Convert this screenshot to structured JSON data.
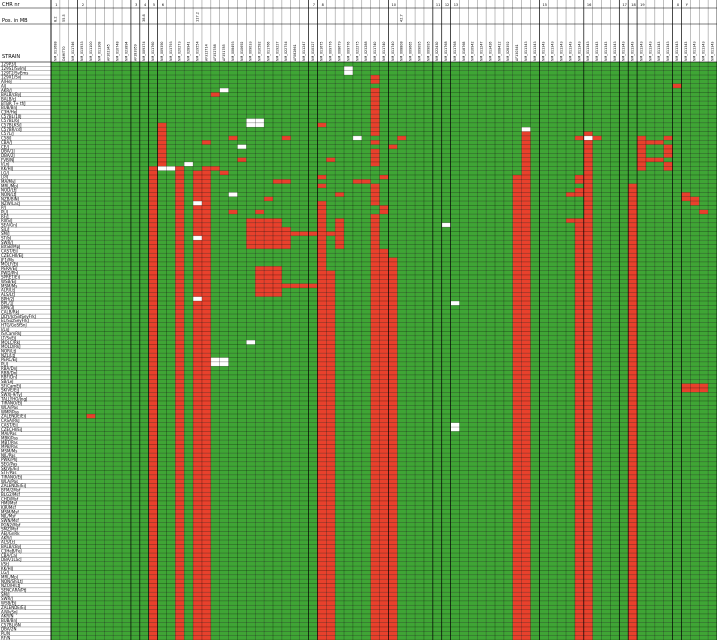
{
  "header": {
    "chr_label": "CHR nr",
    "pos_label": "Pos. in MB",
    "strain_label": "STRAIN"
  },
  "colors": {
    "match": "#3fa535",
    "mismatch": "#e8412c",
    "missing": "#ffffff",
    "gridline": "#000000"
  },
  "chart_data": {
    "type": "heatmap",
    "title": "",
    "legend": "none",
    "chromosomes": [
      "1",
      "",
      "",
      "2",
      "",
      "",
      "",
      "",
      "",
      "3",
      "4",
      "5",
      "6",
      "",
      "",
      "",
      "",
      "",
      "",
      "",
      "",
      "",
      "",
      "",
      "",
      "",
      "",
      "",
      "",
      "7",
      "8",
      "",
      "",
      "",
      "",
      "",
      "",
      "",
      "10",
      "",
      "",
      "",
      "",
      "11",
      "12",
      "13",
      "",
      "",
      "",
      "",
      "",
      "",
      "",
      "",
      "",
      "15",
      "",
      "",
      "",
      "",
      "16",
      "",
      "",
      "",
      "17",
      "18",
      "19",
      "",
      "",
      "",
      "X",
      "Y"
    ],
    "positions": [
      "8.2",
      "55.5",
      "",
      "",
      "",
      "",
      "",
      "",
      "",
      "",
      "38.8",
      "",
      "",
      "",
      "",
      "",
      "117.2",
      "",
      "",
      "",
      "",
      "",
      "",
      "",
      "",
      "",
      "",
      "",
      "",
      "",
      "",
      "",
      "",
      "",
      "",
      "",
      "",
      "",
      "",
      "42.7",
      "",
      "",
      "",
      "",
      "",
      "",
      "",
      "",
      "",
      "",
      "",
      "",
      "",
      "",
      "",
      "",
      "",
      "",
      "",
      "",
      "",
      "",
      "",
      "",
      "",
      "",
      "",
      "",
      "",
      "",
      "",
      "",
      "",
      "",
      "",
      "",
      "",
      ""
    ],
    "markers": [
      "NM_011688",
      "D4MIT70",
      "NM_011746",
      "NM_013933",
      "NM_011100",
      "NM_011308",
      "AF102345",
      "NM_010748",
      "NM_023894",
      "AF183959",
      "NM_009374",
      "NM_011760",
      "NM_009390",
      "NM_013793",
      "NM_020273",
      "NM_028941",
      "NM_019554",
      "AF312714",
      "AF352788",
      "AF351785",
      "NM_008493",
      "NM_010692",
      "NM_009033",
      "NM_010582",
      "NM_011766",
      "NM_019227",
      "NM_022754",
      "AF082861",
      "NM_011247",
      "NM_010327",
      "NM_011675",
      "NM_009776",
      "NM_008679",
      "NM_009776",
      "NM_022275",
      "NM_023288",
      "NM_011740",
      "NM_011740",
      "NM_011740",
      "NM_008808",
      "NM_009665",
      "NM_009095",
      "NM_009095",
      "NM_022430",
      "NM_011768",
      "NM_011768",
      "NM_018768",
      "NM_010942",
      "NM_011247",
      "NM_013426",
      "NM_008412",
      "NM_028392",
      "AF130341",
      "NM_011343",
      "NM_011343",
      "NM_011343",
      "NM_011343",
      "NM_011343",
      "NM_011343",
      "NM_011343",
      "NM_011343",
      "NM_011343",
      "NM_011343",
      "NM_011343",
      "NM_011343",
      "NM_011343",
      "NM_011343",
      "NM_011343",
      "NM_011343",
      "NM_011343",
      "NM_011343",
      "NM_011343",
      "NM_011343",
      "NM_011343",
      "NM_011343"
    ],
    "strains": [
      "129P3/J",
      "129S1/SvImJ",
      "129T2/SvEms",
      "129X1/SvJ",
      "A/HeJ",
      "A/J",
      "AKR/J",
      "BALB/cByJ",
      "BALB/cJ",
      "BTBR T+ tf/J",
      "BUB/BnJ",
      "C3H/HeJ",
      "C57BL/10J",
      "C57BL/6J",
      "C57BLKS/J",
      "C57BR/cdJ",
      "C57L/J",
      "C58/J",
      "CBA/J",
      "CE/J",
      "DBA/1J",
      "DBA/2J",
      "FVB/NJ",
      "I/LnJ",
      "KK/HlJ",
      "LG/J",
      "LP/J",
      "MA/MyJ",
      "MRL/MpJ",
      "NOD/LtJ",
      "NON/LtJ",
      "NZB/BlNJ",
      "NZW/LacJ",
      "P/J",
      "PL/J",
      "RF/J",
      "RIIIS/J",
      "SEA/GnJ",
      "SJL/J",
      "SM/J",
      "ST/bJ",
      "SWR/J",
      "BXSB/MpJ",
      "CAST/EiJ",
      "CZECHII/EiJ",
      "JF1/Ms",
      "MOLF/EiJ",
      "PERA/EiJ",
      "PWD/PhJ",
      "SPRET/EiJ",
      "WSB/EiJ",
      "MSM/Ms",
      "ALR/LtJ",
      "ALS/LtJ",
      "BPH/2J",
      "BPL/1J",
      "BPN/3J",
      "CALB/RkJ",
      "DDY/JclSidSeyFrkJ",
      "EL/SuzSeyFrkJ",
      "HTG/GoSfSnJ",
      "I/LnJ",
      "IS/CamRkJ",
      "LT/SvEiJ",
      "MOLC/RkJ",
      "MOLD/RkJ",
      "NOR/LtJ",
      "NZL/LtJ",
      "PERC/EiJ",
      "PL/J",
      "RBA/DnJ",
      "RBB/DnJ",
      "RBF/DnJ",
      "SB/LeJ",
      "SF/CamEiJ",
      "SKIVE/EiJ",
      "SWXJ-9/TyJ",
      "TALLYHO/JngJ",
      "TIRANO/EiJ",
      "WLA/Pas",
      "WMP/Pas",
      "ZALENDE/EiJ",
      "CASA/RkJ",
      "CAST/EiJ",
      "CZECHI/EiJ",
      "MAI/Pas",
      "MBK/Pas",
      "MBT/Pas",
      "MPB/Pas",
      "MSM/Ms",
      "NJL/Pas",
      "PWK/PhJ",
      "SEG/Pas",
      "SKIVE/EiJ",
      "STF/Pas",
      "TIRANO/EiJ",
      "WLA/Pas",
      "ZALENDE/EiJ",
      "BFM/2Msf",
      "BLG2/Msf",
      "CHD/Msf",
      "HMI/Msf",
      "KJR/Msf",
      "MSM/Msf",
      "NJL/Msf",
      "SWN/Msf",
      "PGN2/Msf",
      "SMZ/Msf",
      "AEJ/GnRk",
      "AKR/J",
      "ALS/LtJ",
      "BALB/cByJ",
      "C3HeB/FeJ",
      "CBA/CaJ",
      "DBA/1LacJ",
      "I/StJ",
      "KK/HlJ",
      "LG/J",
      "MRL/MpJ",
      "NON/ShiLtJ",
      "NZO/HlLtJ",
      "SENCARA/PtJ",
      "SM/J",
      "SWR/J",
      "WSB/EiJ",
      "ZALENDE/EiJ",
      "A/WySnJ",
      "AKR/N",
      "BUB/BnJ",
      "C57BL/6N",
      "DBA/2N",
      "PL/N",
      "RF/N"
    ],
    "cell_encoding": "G = matches reference (green), R = differs (red), W = missing (white)",
    "rows": [
      "GGGGGGGGGGGGGGGGGGGGGGGGGGGGGGGGGGGGGGGGGGGGGGGGGGGGGGGGGGGGGGGGGGGGGGGGGGG",
      "GGGGGGGGGGGGGGGGGGGGGGGGGGGGGGGGGWGGGGGGGGGGGGGGGGGGGGGGGGGGGGGGGGGGGGGGGGG",
      "GGGGGGGGGGGGGGGGGGGGGGGGGGGGGGGGGWGGGGGGGGGGGGGGGGGGGGGGGGGGGGGGGGGGGGGGGGG",
      "GGGGGGGGGGGGGGGGGGGGGGGGGGGGGGGGGGGGRGGGGGGGGGGGGGGGGGGGGGGGGGGGGGGGGGGGGGG",
      "GGGGGGGGGGGGGGGGGGGGGGGGGGGGGGGGGGGGRGGGGGGGGGGGGGGGGGGGGGGGGGGGGGGGGGGGGGG",
      "GGGGGGGGGGGGGGGGGGGGGGGGGGGGGGGGGGGGGGGGGGGGGGGGGGGGGGGGGGGGGGGGGGGGGGRGGGG",
      "GGGGGGGGGGGGGGGGGGGWGGGGGGGGGGGGGGGGRGGGGGGGGGGGGGGGGGGGGGGGGGGGGGGGGGGGGGG",
      "GGGGGGGGGGGGGGGGGGRGGGGGGGGGGGGGGGGGRGGGGGGGGGGGGGGGGGGGGGGGGGGGGGGGGGGGGGG",
      "GGGGGGGGGGGGGGGGGGGGGGGGGGGGGGGGGGGGRGGGGGGGGGGGGGGGGGGGGGGGGGGGGGGGGGGGGGG",
      "GGGGGGGGGGGGGGGGGGGGGGGGGGGGGGGGGGGGRGGGGGGGGGGGGGGGGGGGGGGGGGGGGGGGGGGGGGG",
      "GGGGGGGGGGGGGGGGGGGGGGGGGGGGGGGGGGGGRGGGGGGGGGGGGGGGGGGGGGGGGGGGGGGGGGGGGGG",
      "GGGGGGGGGGGGGGGGGGGGGGGGGGGGGGGGGGGGRGGGGGGGGGGGGGGGGGGGGGGGGGGGGGGGGGGGGGG",
      "GGGGGGGGGGGGGGGGGGGGGGGGGGGGGGGGGGGGRGGGGGGGGGGGGGGGGGGGGGGGGGGGGGGGGGGGGGG",
      "GGGGGGGGGGGGGGGGGGGGGGWWGGGGGGGGGGGGRGGGGGGGGGGGGGGGGGGGGGGGGGGGGGGGGGGGGGG",
      "GGGGGGGGGGGGRGGGGGGGGGWWGGGGGGRGGGGGRGGGGGGGGGGGGGGGGGGGGGGGGGGGGGGGGGGGGGG",
      "GGGGGGGGGGGGRGGGGGGGGGGGGGGGGGGGGGGGRGGGGGGGGGGGGGGGGWGGGGGGGGGGGGGGGGGGGGG",
      "GGGGGGGGGGGGRGGGGGGGGGGGGGGGGGGGGGGGRGGGGGGGGGGGGGGGGRGGGGGGRGGGGGGGGGGGGGG",
      "GGGGGGGGGGGGRGGGGGGGRGGGGGRGGGGGGGWGGGGRGGGGGGGGGGGGGRGGGGGRWRGGGGRGGRGGGGG",
      "GGGGGGGGGGGGRGGGGRGGGGGGGGGGGGGGGGGGRGGGGGGGGGGGGGGGGRGGGGGGRGGGGGRRRGGGGGG",
      "GGGGGGGGGGGGRGGGGGGGGWGGGGGGGGGGGGGGGGRGGGGGGGGGGGGGGRGGGGGGRGGGGGRGGRGGGGG",
      "GGGGGGGGGGGGRGGGGGGGGGGGGGGGGGGGGGGGRGGGGGGGGGGGGGGGGRGGGGGGRGGGGGRGGRGGGGG",
      "GGGGGGGGGGGGRGGGGGGGGGGGGGGGGGGGGGGGRGGGGGGGGGGGGGGGGRGGGGGGRGGGGGRGGRGGGGG",
      "GGGGGGGGGGGGRGGGGGGGGRGGGGGGGGGRGGGGRGGGGGGGGGGGGGGGGRGGGGGGRGGGGGRRRGGGGGG",
      "GGGGGGGGGGGGRGGWGGGGGGGGGGGGGGGGGGGGRGGGGGGGGGGGGGGGGRGGGGGGRGGGGGRGGRGGGGG",
      "GGGGGGGGGGGRWWRGGRRGGGGGGGGGGGGGGGGGGGGGGGGGGGGGGGGGGRGGGGGGRGGGGGRGGRGGGGG",
      "GGGGGGGGGGGRGGRGRRGRGGGGGGGGGGGGGGGGGGGGGGGGGGGGGGGGGRGGGGGGRGGGGGGGGGGGGGG",
      "GGGGGGGGGGGRGGRGRRGGGGGGGGGGGGRGGGGGGRGGGGGGGGGGGGGGRRGGGGGRRGGGGGGGGGGGGGG",
      "GGGGGGGGGGGRGGRGRRGGGGGGGRRGGGGGGGRRGGGGGGGGGGGGGGGGRRGGGGGRRGGGGGGGGGGGGGG",
      "GGGGGGGGGGGRGGRGRRGGGGGGGGGGGGRGGGGGRGGGGGGGGGGGGGGGRRGGGGGGRGGGGRGGGGGGGGG",
      "GGGGGGGGGGGRGGRGRRGGGGGGGGGGGGGGGGGGRGGGGGGGGGGGGGGGRRGGGGGRRGGGGRGGGGGGGGG",
      "GGGGGGGGGGGRGGRGRRGGWGGGGGGGGGGGRGGGRGGGGGGGGGGGGGGGRRGGGGRRRGGGGRGGGGGRGGG",
      "GGGGGGGGGGGRGGRGRRGGGGGGRGGGGGGGGGGGRGGGGGGGGGGGGGGGRRGGGGGGRGGGGRGGGGGRRGG",
      "GGGGGGGGGGGRGGRGWRGGGGGGGGGGGGRGGGGGRGGGGGGGGGGGGGGGRRGGGGGGRGGGGRGGGGGGRGG",
      "GGGGGGGGGGGRGGRGRRGGGGGGGGGGGGRGGGGGGRGGGGGGGGGGGGGGRRGGGGGGRGGGGRGGGGGGGGG",
      "GGGGGGGGGGGRGGRGRRGGRGGRGGGGGGRGGGGGGRGGGGGGGGGGGGGGRRGGGGGGRGGGGRGGGGGGGRG",
      "GGGGGGGGGGGRGGRGRRGGGGGGGGGGGGRGGGGGRGGGGGGGGGGGGGGGRRGGGGGGRGGGGRGGGGGGGGG",
      "GGGGGGGGGGGRGGRGRRGGGGRRRRGGGGRGRGGGRGGGGGGGGGGGGGGGRRGGGGRRRGGGGRGGGGGGGGG",
      "GGGGGGGGGGGRGGRGRRGGGGRRRRGGGGRGRGGGRGGGGGGGWGGGGGGGRRGGGGGRRGGGGRGGGGGGGGG",
      "GGGGGGGGGGGRGGRGRRGGGGRRRRRGGGRGRGGGRGGGGGGGGGGGGGGGRRGGGGGRRGGGGRGGGGGGGGG",
      "GGGGGGGGGGGRGGRGRRGGGGRRRRRRRRRRRGGGRGGGGGGGGGGGGGGGRRGGGGGRRGGGGRGGGGGGGGG",
      "GGGGGGGGGGGRGGRGWRGGGGRRRRRGGGRGRGGGRGGGGGGGGGGGGGGGRRGGGGGRRGGGGRGGGGGGGGG",
      "GGGGGGGGGGGRGGRGRRGGGGRRRRRGGGRGRGGGRGGGGGGGGGGGGGGGRRGGGGGRRGGGGRGGGGGGGGG",
      "GGGGGGGGGGGRGGRGRRGGGGRRRRRGGGRGRGGGRGGGGGGGGGGGGGGGRRGGGGGRRGGGGRGGGGGGGGG",
      "GGGGGGGGGGGRGGRGRRGGGGGGGGGGGGRGGGGGRRGGGGGGGGGGGGGGRRGGGGGRRGGGGRGGGGGGGGG",
      "GGGGGGGGGGGRGGRGRRGGGGGGGGGGGGRGGGGGRRGGGGGGGGGGGGGGRRGGGGGRRGGGGRGGGGGGGGG",
      "GGGGGGGGGGGRGGRGRRGGGGGGGGGGGGRGGGGGRRRGGGGGGGGGGGGGRRGGGGGRRGGGGRGGGGGGGGG",
      "GGGGGGGGGGGRGGRGRRGGGGGGGGGGGGRGGGGGRRRGGGGGGGGGGGGGRRGGGGGRRGGGGRGGGGGGGGG",
      "GGGGGGGGGGGRGGRGRRGGGGGRRRGGGGRGGGGGRRRGGGGGGGGGGGGGRRGGGGGRRGGGGRGGGGGGGGG",
      "GGGGGGGGGGGRGGRGRRGGGGGRRRGGGGRRGGGGRRRGGGGGGGGGGGGGRRGGGGGRRGGGGRGGGGGGGGG",
      "GGGGGGGGGGGRGGRGRRGGGGGRRRGGGGRRGGGGRRRGGGGGGGGGGGGGRRGGGGGRRGGGGRGGGGGGGGG",
      "GGGGGGGGGGGRGGRGRRGGGGGRRRGGGGRRGGGGRRRGGGGGGGGGGGGGRRGGGGGRRGGGGRGGGGGGGGG",
      "GGGGGGGGGGGRGGRGRRGGGGGRRRRRRRRRGGGGRRRGGGGGGGGGGGGGRRGGGGGRRGGGGRGGGGGGGGG",
      "GGGGGGGGGGGRGGRGRRGGGGGRRRGGGGRRGGGGRRRGGGGGGGGGGGGGRRGGGGGRRGGGGRGGGGGGGGG",
      "GGGGGGGGGGGRGGRGRRGGGGGRRRGGGGRRGGGGRRRGGGGGGGGGGGGGRRGGGGGRRGGGGRGGGGGGGGG",
      "GGGGGGGGGGGRGGRGWRGGGGGGGGGGGGRRGGGGRRRGGGGGGGGGGGGGRRGGGGGRRGGGGRGGGGGGGGG",
      "GGGGGGGGGGGRGGRGRRGGGGGGGGGGGGRRGGGGRRRGGGGGGWGGGGGGRRGGGGGRRGGGGRGGGGGGGGG",
      "GGGGGGGGGGGRGGRGRRGGGGGGGGGGGGRRGGGGRRRGGGGGGGGGGGGGRRGGGGGRRGGGGRGGGGGGGGG",
      "GGGGGGGGGGGRGGRGRRGGGGGGGGGGGGRRGGGGRRRGGGGGGGGGGGGGRRGGGGGRRGGGGRGGGGGGGGG",
      "GGGGGGGGGGGRGGRGRRGGGGGGGGGGGGRRGGGGRRRGGGGGGGGGGGGGRRGGGGGRRGGGGRGGGGGGGGG",
      "GGGGGGGGGGGRGGRGRRGGGGGGGGGGGGRRGGGGRRRGGGGGGGGGGGGGRRGGGGGRRGGGGRGGGGGGGGG",
      "GGGGGGGGGGGRGGRGRRGGGGGGGGGGGGRRGGGGRRRGGGGGGGGGGGGGRRGGGGGRRGGGGRGGGGGGGGG",
      "GGGGGGGGGGGRGGRGRRGGGGGGGGGGGGRRGGGGRRRGGGGGGGGGGGGGRRGGGGGRRGGGGRGGGGGGGGG",
      "GGGGGGGGGGGRGGRGRRGGGGGGGGGGGGRRGGGGRRRGGGGGGGGGGGGGRRGGGGGRRGGGGRGGGGGGGGG",
      "GGGGGGGGGGGRGGRGRRGGGGGGGGGGGGRRGGGGRRRGGGGGGGGGGGGGRRGGGGGRRGGGGRGGGGGGGGG",
      "GGGGGGGGGGGRGGRGRRGGGGWGGGGGGGRRGGGGRRRGGGGGGGGGGGGGRRGGGGGRRGGGGRGGGGGGGGG",
      "GGGGGGGGGGGRGGRGRRGGGGGGGGGGGGRRGGGGRRRGGGGGGGGGGGGGRRGGGGGRRGGGGRGGGGGGGGG",
      "GGGGGGGGGGGRGGRGRRGGGGGGGGGGGGRRGGGGRRRGGGGGGGGGGGGGRRGGGGGRRGGGGRGGGGGGGGG",
      "GGGGGGGGGGGRGGRGRRGGGGGGGGGGGGRRGGGGRRRGGGGGGGGGGGGGRRGGGGGRRGGGGRGGGGGGGGG",
      "GGGGGGGGGGGRGGRGRRWWGGGGGGGGGGRRGGGGRRRGGGGGGGGGGGGGRRGGGGGRRGGGGRGGGGGGGGG",
      "GGGGGGGGGGGRGGRGRRWWGGGGGGGGGGRRGGGGRRRGGGGGGGGGGGGGRRGGGGGRRGGGGRGGGGGGGGG",
      "GGGGGGGGGGGRGGRGRRGGGGGGGGGGGGRRGGGGRRRGGGGGGGGGGGGGRRGGGGGRRGGGGRGGGGGGGGG",
      "GGGGGGGGGGGRGGRGRRGGGGGGGGGGGGRRGGGGRRRGGGGGGGGGGGGGRRGGGGGRRGGGGRGGGGGGGGG",
      "GGGGGGGGGGGRGGRGRRGGGGGGGGGGGGRRGGGGRRRGGGGGGGGGGGGGRRGGGGGRRGGGGRGGGGGGGGG",
      "GGGGGGGGGGGRGGRGRRGGGGGGGGGGGGRRGGGGRRRGGGGGGGGGGGGGRRGGGGGRRGGGGRGGGGGGGGG",
      "GGGGGGGGGGGRGGRGRRGGGGGGGGGGGGRRGGGGRRRGGGGGGGGGGGGGRRGGGGGRRGGGGRGGGGGRRRG",
      "GGGGGGGGGGGRGGRGRRGGGGGGGGGGGGRRGGGGRRRGGGGGGGGGGGGGRRGGGGGRRGGGGRGGGGGRRRG",
      "GGGGGGGGGGGRGGRGRRGGGGGGGGGGGGRRGGGGRRRGGGGGGGGGGGGGRRGGGGGRRGGGGRGGGGGGGGG",
      "GGGGGGGGGGGRGGRGRRGGGGGGGGGGGGRRGGGGRRRGGGGGGGGGGGGGRRGGGGGRRGGGGRGGGGGGGGG",
      "GGGGGGGGGGGRGGRGRRGGGGGGGGGGGGRRGGGGRRRGGGGGGGGGGGGGRRGGGGGRRGGGGRGGGGGGGGG",
      "GGGGGGGGGGGRGGRGRRGGGGGGGGGGGGRRGGGGRRRGGGGGGGGGGGGGRRGGGGGRRGGGGRGGGGGGGGG",
      "GGGGGGGGGGGRGGRGRRGGGGGGGGGGGGRRGGGGRRRGGGGGGGGGGGGGRRGGGGGRRGGGGRGGGGGGGGG",
      "GGGGRGGGGGGRGGRGRRGGGGGGGGGGGGRRGGGGRRRGGGGGGGGGGGGGRRGGGGGRRGGGGRGGGGGGGGG",
      "GGGGGGGGGGGRGGRGRRGGGGGGGGGGGGRRGGGGRRRGGGGGGGGGGGGGRRGGGGGRRGGGGRGGGGGGGGG",
      "GGGGGGGGGGGRGGRGRRGGGGGGGGGGGGRRGGGGRRRGGGGGGWGGGGGGRRGGGGGRRGGGGRGGGGGGGGG",
      "GGGGGGGGGGGRGGRGRRGGGGGGGGGGGGRRGGGGRRRGGGGGGWGGGGGGRRGGGGGRRGGGGRGGGGGGGGG",
      "GGGGGGGGGGGRGGRGRRGGGGGGGGGGGGRRGGGGRRRGGGGGGGGGGGGGRRGGGGGRRGGGGRGGGGGGGGG",
      "GGGGGGGGGGGRGGRGRRGGGGGGGGGGGGRRGGGGRRRGGGGGGGGGGGGGRRGGGGGRRGGGGRGGGGGGGGG",
      "GGGGGGGGGGGRGGRGRRGGGGGGGGGGGGRRGGGGRRRGGGGGGGGGGGGGRRGGGGGRRGGGGRGGGGGGGGG",
      "GGGGGGGGGGGRGGRGRRGGGGGGGGGGGGRRGGGGRRRGGGGGGGGGGGGGRRGGGGGRRGGGGRGGGGGGGGG",
      "GGGGGGGGGGGRGGRGRRGGGGGGGGGGGGRRGGGGRRRGGGGGGGGGGGGGRRGGGGGRRGGGGRGGGGGGGGG",
      "GGGGGGGGGGGRGGRGRRGGGGGGGGGGGGRRGGGGRRRGGGGGGGGGGGGGRRGGGGGRRGGGGRGGGGGGGGG",
      "GGGGGGGGGGGRGGRGRRGGGGGGGGGGGGRRGGGGRRRGGGGGGGGGGGGGRRGGGGGRRGGGGRGGGGGGGGG",
      "GGGGGGGGGGGRGGRGRRGGGGGGGGGGGGRRGGGGRRRGGGGGGGGGGGGGRRGGGGGRRGGGGRGGGGGGGGG",
      "GGGGGGGGGGGRGGRGRRGGGGGGGGGGGGRRGGGGRRRGGGGGGGGGGGGGRRGGGGGRRGGGGRGGGGGGGGG",
      "GGGGGGGGGGGRGGRGRRGGGGGGGGGGGGRRGGGGRRRGGGGGGGGGGGGGRRGGGGGRRGGGGRGGGGGGGGG",
      "GGGGGGGGGGGRGGRGRRGGGGGGGGGGGGRRGGGGRRRGGGGGGGGGGGGGRRGGGGGRRGGGGRGGGGGGGGG",
      "GGGGGGGGGGGRGGRGRRGGGGGGGGGGGGRRGGGGRRRGGGGGGGGGGGGGRRGGGGGRRGGGGRGGGGGGGGG",
      "GGGGGGGGGGGRGGRGRRGGGGGGGGGGGGRRGGGGRRRGGGGGGGGGGGGGRRGGGGGRRGGGGRGGGGGGGGG",
      "GGGGGGGGGGGRGGRGRRGGGGGGGGGGGGRRGGGGRRRGGGGGGGGGGGGGRRGGGGGRRGGGGRGGGGGGGGG",
      "GGGGGGGGGGGRGGRGRRGGGGGGGGGGGGRRGGGGRRRGGGGGGGGGGGGGRRGGGGGRRGGGGRGGGGGGGGG",
      "GGGGGGGGGGGRGGRGRRGGGGGGGGGGGGRRGGGGRRRGGGGGGGGGGGGGRRGGGGGRRGGGGRGGGGGGGGG",
      "GGGGGGGGGGGRGGRGRRGGGGGGGGGGGGRRGGGGRRRGGGGGGGGGGGGGRRGGGGGRRGGGGRGGGGGGGGG",
      "GGGGGGGGGGGRGGRGRRGGGGGGGGGGGGRRGGGGRRRGGGGGGGGGGGGGRRGGGGGRRGGGGRGGGGGGGGG",
      "GGGGGGGGGGGRGGRGRRGGGGGGGGGGGGRRGGGGRRRGGGGGGGGGGGGGRRGGGGGRRGGGGRGGGGGGGGG",
      "GGGGGGGGGGGRGGRGRRGGGGGGGGGGGGRRGGGGRRRGGGGGGGGGGGGGRRGGGGGRRGGGGRGGGGGGGGG",
      "GGGGGGGGGGGRGGRGRRGGGGGGGGGGGGRRGGGGRRRGGGGGGGGGGGGGRRGGGGGRRGGGGRGGGGGGGGG",
      "GGGGGGGGGGGRGGRGRRGGGGGGGGGGGGRRGGGGRRRGGGGGGGGGGGGGRRGGGGGRRGGGGRGGGGGGGGG",
      "GGGGGGGGGGGRGGRGRRGGGGGGGGGGGGRRGGGGRRRGGGGGGGGGGGGGRRGGGGGRRGGGGRGGGGGGGGG",
      "GGGGGGGGGGGRGGRGRRGGGGGGGGGGGGRRGGGGRRRGGGGGGGGGGGGGRRGGGGGRRGGGGRGGGGGGGGG",
      "GGGGGGGGGGGRGGRGRRGGGGGGGGGGGGRRGGGGRRRGGGGGGGGGGGGGRRGGGGGRRGGGGRGGGGGGGGG",
      "GGGGGGGGGGGRGGRGRRGGGGGGGGGGGGRRGGGGRRRGGGGGGGGGGGGGRRGGGGGRRGGGGRGGGGGGGGG",
      "GGGGGGGGGGGRGGRGRRGGGGGGGGGGGGRRGGGGRRRGGGGGGGGGGGGGRRGGGGGRRGGGGRGGGGGGGGG",
      "GGGGGGGGGGGRGGRGRRGGGGGGGGGGGGRRGGGGRRRGGGGGGGGGGGGGRRGGGGGRRGGGGRGGGGGGGGG",
      "GGGGGGGGGGGRGGRGRRGGGGGGGGGGGGRRGGGGRRRGGGGGGGGGGGGGRRGGGGGRRGGGGRGGGGGGGGG",
      "GGGGGGGGGGGRGGRGRRGGGGGGGGGGGGRRGGGGRRRGGGGGGGGGGGGGRRGGGGGRRGGGGRGGGGGGGGG",
      "GGGGGGGGGGGRGGRGRRGGGGGGGGGGGGRRGGGGRRRGGGGGGGGGGGGGRRGGGGGRRGGGGRGGGGGGGGG",
      "GGGGGGGGGGGRGGRGRRGGGGGGGGGGGGRRGGGGRRRGGGGGGGGGGGGGRRGGGGGRRGGGGRGGGGGGGGG",
      "GGGGGGGGGGGRGGRGRRGGGGGGGGGGGGRRGGGGRRRGGGGGGGGGGGGGRRGGGGGRRGGGGRGGGGGGGGG",
      "GGGGGGGGGGGRGGRGRRGGGGGGGGGGGGRRGGGGRRRGGGGGGGGGGGGGRRGGGGGRRGGGGRGGGGGGGGG",
      "GGGGGGGGGGGRGGRGRRGGGGGGGGGGGGRRGGGGRRRGGGGGGGGGGGGGRRGGGGGRRGGGGRGGGGGGGGG",
      "GGGGGGGGGGGRGGRGRRGGGGGGGGGGGGRRGGGGRRRGGGGGGGGGGGGGRRGGGGGRRGGGGRGGGGGGGGG",
      "GGGGGGGGGGGRGGRGRRGGGGGGGGGGGGRRGGGGRRRGGGGGGGGGGGGGRRGGGGGRRGGGGRGGGGGGGGG",
      "GGGGGGGGGGGRGGRGRRGGGGGGGGGGGGRRGGGGRRRGGGGGGGGGGGGGRRGGGGGRRGGGGRGGGGGGGGG",
      "GGGGGGGGGGGRGGRGRRGGGGGGGGGGGGRRGGGGRRRGGGGGGGGGGGGGRRGGGGGRRGGGGRGGGGGGGGG",
      "GGGGGGGGGGGRGGRGRRGGGGGGGGGGGGRRGGGGRRRGGGGGGGGGGGGGRRGGGGGRRGGGGRGGGGGGGGG",
      "GGGGGGGGGGGRGGRGRRGGGGGGGGGGGGRRGGGGRRRGGGGGGGGGGGGGRRGGGGGRRGGGGRGGGGGGGGG",
      "GGGGGGGGGGGRGGRGRRGGGGGGGGGGGGRRGGGGRRRGGGGGGGGGGGGGRRGGGGGRRGGGGRGGGGGGGGG",
      "GGGGGGGGGGGRGGRGRRGGGGGGGGGGGGRRGGGGRRRGGGGGGGGGGGGGRRGGGGGRRGGGGRGGGGGGGGG",
      "GGGGGGGGGGGRGGRGRRGGGGGGGGGGGGRRGGGGRRRGGGGGGGGGGGGGRRGGGGGRRGGGGRGGGGGGGGG",
      "GGGGGGGGGGGRGGRGRRGGGGGGGGGGGGRRGGGGRRRGGGGGGGGGGGGGRRGGGGGRRGGGGRGGGGGGGGG",
      "GGGGGGGGGGGRGGRGRRGGGGGGGGGGGGRRGGGGRRRGGGGGGGGGGGGGRRGGGGGRRGGGGRGGGGGGGGG",
      "GGGGGGGGGGGRGGRGRRGGGGGGGGGGGGRRGGGGRRRGGGGGGGGGGGGGRRGGGGGRRGGGGRGGGGGGGGG",
      "GGGGGGGGGGGRGGRGRRGGGGGGGGGGGGRRGGGGRRRGGGGGGGGGGGGGRRGGGGGRRGGGGRGGGGGGGGG"
    ]
  }
}
